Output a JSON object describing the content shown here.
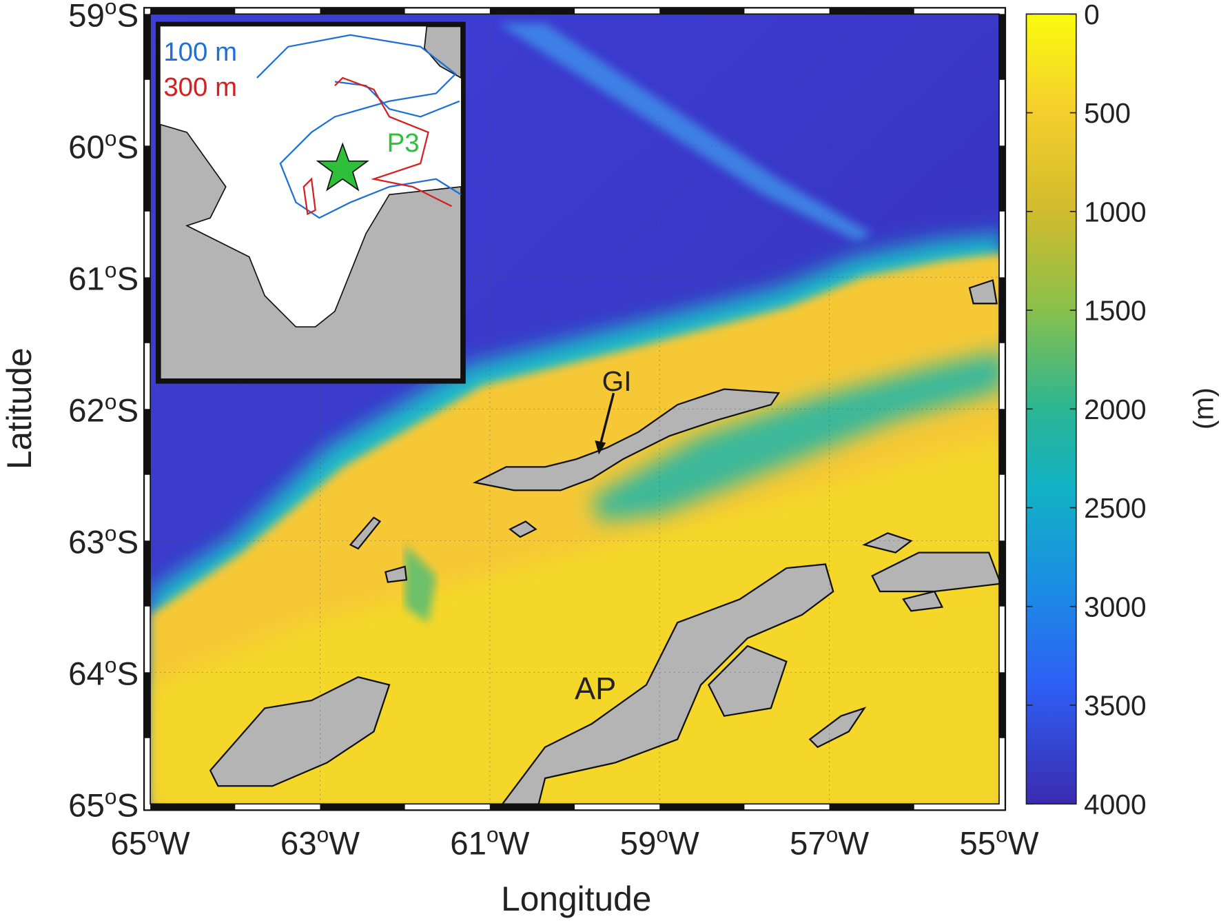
{
  "map": {
    "type": "map",
    "xlabel": "Longitude",
    "ylabel": "Latitude",
    "xlim": [
      -65,
      -55
    ],
    "ylim": [
      -59,
      -65
    ],
    "xticks": [
      {
        "value": -65,
        "label": [
          "65",
          "o",
          "W"
        ]
      },
      {
        "value": -63,
        "label": [
          "63",
          "o",
          "W"
        ]
      },
      {
        "value": -61,
        "label": [
          "61",
          "o",
          "W"
        ]
      },
      {
        "value": -59,
        "label": [
          "59",
          "o",
          "W"
        ]
      },
      {
        "value": -57,
        "label": [
          "57",
          "o",
          "W"
        ]
      },
      {
        "value": -55,
        "label": [
          "55",
          "o",
          "W"
        ]
      }
    ],
    "yticks": [
      {
        "value": -59,
        "label": [
          "59",
          "o",
          "S"
        ]
      },
      {
        "value": -60,
        "label": [
          "60",
          "o",
          "S"
        ]
      },
      {
        "value": -61,
        "label": [
          "61",
          "o",
          "S"
        ]
      },
      {
        "value": -62,
        "label": [
          "62",
          "o",
          "S"
        ]
      },
      {
        "value": -63,
        "label": [
          "63",
          "o",
          "S"
        ]
      },
      {
        "value": -64,
        "label": [
          "64",
          "o",
          "S"
        ]
      },
      {
        "value": -65,
        "label": [
          "65",
          "o",
          "S"
        ]
      }
    ],
    "grid": true,
    "colorbar": {
      "label": "(m)",
      "lim": [
        0,
        4000
      ],
      "ticks": [
        0,
        500,
        1000,
        1500,
        2000,
        2500,
        3000,
        3500,
        4000
      ]
    },
    "annotations": {
      "gi": "GI",
      "ap": "AP"
    },
    "inset": {
      "contour_100": "100 m",
      "contour_300": "300 m",
      "station": "P3"
    }
  }
}
